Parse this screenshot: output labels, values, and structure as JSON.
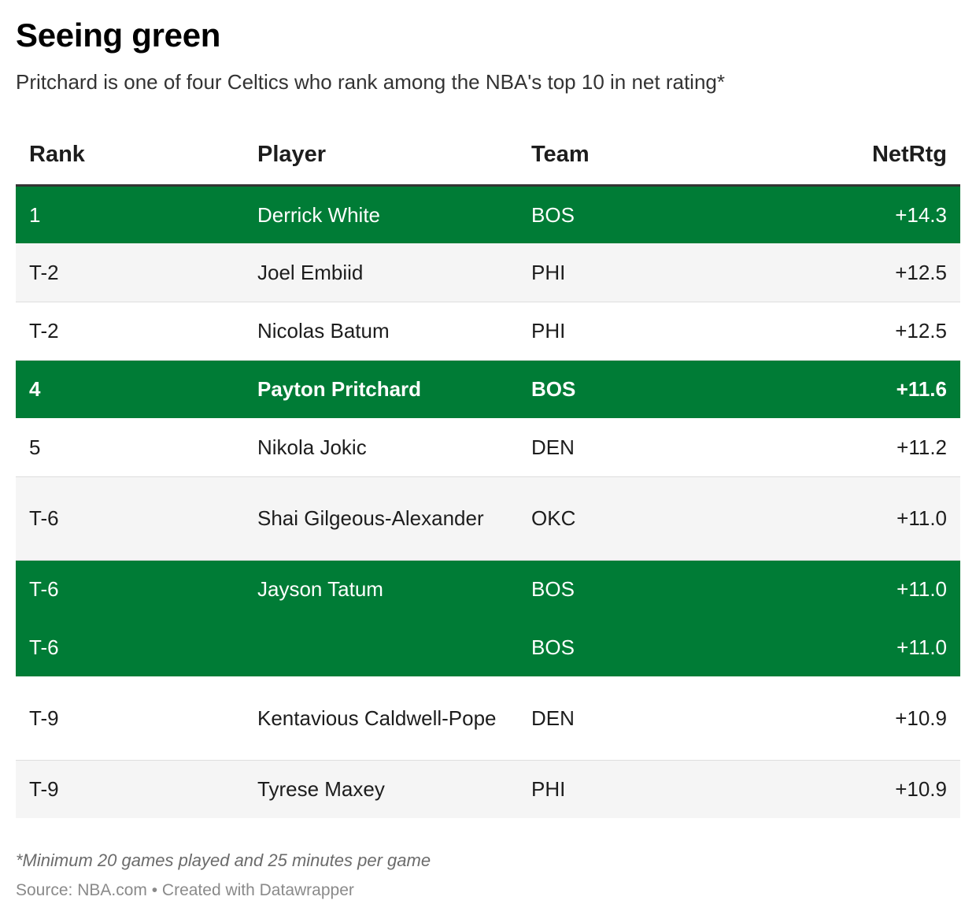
{
  "header": {
    "title": "Seeing green",
    "subtitle": "Pritchard is one of four Celtics who rank among the NBA's top 10 in net rating*"
  },
  "chart_data": {
    "type": "table",
    "columns": [
      "Rank",
      "Player",
      "Team",
      "NetRtg"
    ],
    "rows": [
      {
        "rank": "1",
        "player": "Derrick White",
        "team": "BOS",
        "netrtg": "+14.3",
        "highlight": true,
        "bold": false,
        "tall": false,
        "alt": false,
        "obscured": false
      },
      {
        "rank": "T-2",
        "player": "Joel Embiid",
        "team": "PHI",
        "netrtg": "+12.5",
        "highlight": false,
        "bold": false,
        "tall": false,
        "alt": true,
        "obscured": false
      },
      {
        "rank": "T-2",
        "player": "Nicolas Batum",
        "team": "PHI",
        "netrtg": "+12.5",
        "highlight": false,
        "bold": false,
        "tall": false,
        "alt": false,
        "obscured": false
      },
      {
        "rank": "4",
        "player": "Payton Pritchard",
        "team": "BOS",
        "netrtg": "+11.6",
        "highlight": true,
        "bold": true,
        "tall": false,
        "alt": false,
        "obscured": false
      },
      {
        "rank": "5",
        "player": "Nikola Jokic",
        "team": "DEN",
        "netrtg": "+11.2",
        "highlight": false,
        "bold": false,
        "tall": false,
        "alt": false,
        "obscured": false
      },
      {
        "rank": "T-6",
        "player": "Shai Gilgeous-Alexander",
        "team": "OKC",
        "netrtg": "+11.0",
        "highlight": false,
        "bold": false,
        "tall": true,
        "alt": true,
        "obscured": false
      },
      {
        "rank": "T-6",
        "player": "Jayson Tatum",
        "team": "BOS",
        "netrtg": "+11.0",
        "highlight": true,
        "bold": false,
        "tall": false,
        "alt": false,
        "obscured": false
      },
      {
        "rank": "T-6",
        "player": "",
        "team": "BOS",
        "netrtg": "+11.0",
        "highlight": true,
        "bold": false,
        "tall": false,
        "alt": false,
        "obscured": true
      },
      {
        "rank": "T-9",
        "player": "Kentavious Caldwell-Pope",
        "team": "DEN",
        "netrtg": "+10.9",
        "highlight": false,
        "bold": false,
        "tall": true,
        "alt": false,
        "obscured": false
      },
      {
        "rank": "T-9",
        "player": "Tyrese Maxey",
        "team": "PHI",
        "netrtg": "+10.9",
        "highlight": false,
        "bold": false,
        "tall": false,
        "alt": true,
        "obscured": false
      }
    ],
    "highlight_color": "#007c36"
  },
  "footer": {
    "note": "*Minimum 20 games played and 25 minutes per game",
    "source": "Source: NBA.com • Created with Datawrapper"
  }
}
